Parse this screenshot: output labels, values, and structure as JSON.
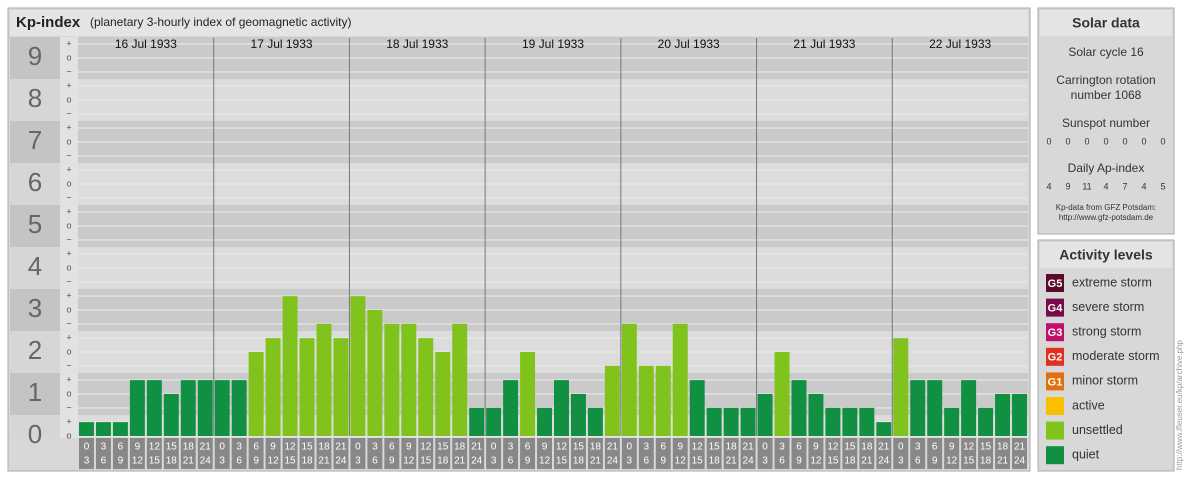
{
  "chart_data": {
    "type": "bar",
    "title": "Kp-index",
    "subtitle": "(planetary 3-hourly index of geomagnetic activity)",
    "days": [
      "16 Jul 1933",
      "17 Jul 1933",
      "18 Jul 1933",
      "19 Jul 1933",
      "20 Jul 1933",
      "21 Jul 1933",
      "22 Jul 1933"
    ],
    "hours": [
      "0",
      "3",
      "6",
      "9",
      "12",
      "15",
      "18",
      "21",
      "24"
    ],
    "values": [
      0.33,
      0.33,
      0.33,
      1.33,
      1.33,
      1.0,
      1.33,
      1.33,
      1.33,
      1.33,
      2.0,
      2.33,
      3.33,
      2.33,
      2.67,
      2.33,
      3.33,
      3.0,
      2.67,
      2.67,
      2.33,
      2.0,
      2.67,
      0.67,
      0.67,
      1.33,
      2.0,
      0.67,
      1.33,
      1.0,
      0.67,
      1.67,
      2.67,
      1.67,
      1.67,
      2.67,
      1.33,
      0.67,
      0.67,
      0.67,
      1.0,
      2.0,
      1.33,
      1.0,
      0.67,
      0.67,
      0.67,
      0.33,
      2.33,
      1.33,
      1.33,
      0.67,
      1.33,
      0.67,
      1.0,
      1.0
    ],
    "colors": [
      "#109040",
      "#109040",
      "#109040",
      "#109040",
      "#109040",
      "#109040",
      "#109040",
      "#109040",
      "#109040",
      "#109040",
      "#80c31c",
      "#80c31c",
      "#80c31c",
      "#80c31c",
      "#80c31c",
      "#80c31c",
      "#80c31c",
      "#80c31c",
      "#80c31c",
      "#80c31c",
      "#80c31c",
      "#80c31c",
      "#80c31c",
      "#109040",
      "#109040",
      "#109040",
      "#80c31c",
      "#109040",
      "#109040",
      "#109040",
      "#109040",
      "#80c31c",
      "#80c31c",
      "#80c31c",
      "#80c31c",
      "#80c31c",
      "#109040",
      "#109040",
      "#109040",
      "#109040",
      "#109040",
      "#80c31c",
      "#109040",
      "#109040",
      "#109040",
      "#109040",
      "#109040",
      "#109040",
      "#80c31c",
      "#109040",
      "#109040",
      "#109040",
      "#109040",
      "#109040",
      "#109040",
      "#109040"
    ],
    "ylim": [
      0,
      9.5
    ],
    "yticks": [
      0,
      1,
      2,
      3,
      4,
      5,
      6,
      7,
      8,
      9
    ],
    "minor_marks": [
      "−",
      "o",
      "+"
    ],
    "grid": true
  },
  "solar": {
    "title": "Solar data",
    "cycle": "Solar cycle 16",
    "carrington": [
      "Carrington rotation",
      "number 1068"
    ],
    "sunspot_label": "Sunspot number",
    "sunspot": [
      0,
      0,
      0,
      0,
      0,
      0,
      0
    ],
    "ap_label": "Daily Ap-index",
    "ap": [
      4,
      9,
      11,
      4,
      7,
      4,
      5
    ],
    "source": [
      "Kp-data from GFZ Potsdam:",
      "http://www.gfz-potsdam.de"
    ]
  },
  "legend": {
    "title": "Activity levels",
    "items": [
      {
        "badge": "G5",
        "label": "extreme storm",
        "color": "#5a0a2a"
      },
      {
        "badge": "G4",
        "label": "severe storm",
        "color": "#7a0a4a"
      },
      {
        "badge": "G3",
        "label": "strong storm",
        "color": "#c0106a"
      },
      {
        "badge": "G2",
        "label": "moderate storm",
        "color": "#e03020"
      },
      {
        "badge": "G1",
        "label": "minor storm",
        "color": "#e07010"
      },
      {
        "label": "active",
        "color": "#f8c000"
      },
      {
        "label": "unsettled",
        "color": "#80c31c"
      },
      {
        "label": "quiet",
        "color": "#109040"
      }
    ]
  },
  "watermark": "http://www.ifleuser.eu/kp/archive.php"
}
